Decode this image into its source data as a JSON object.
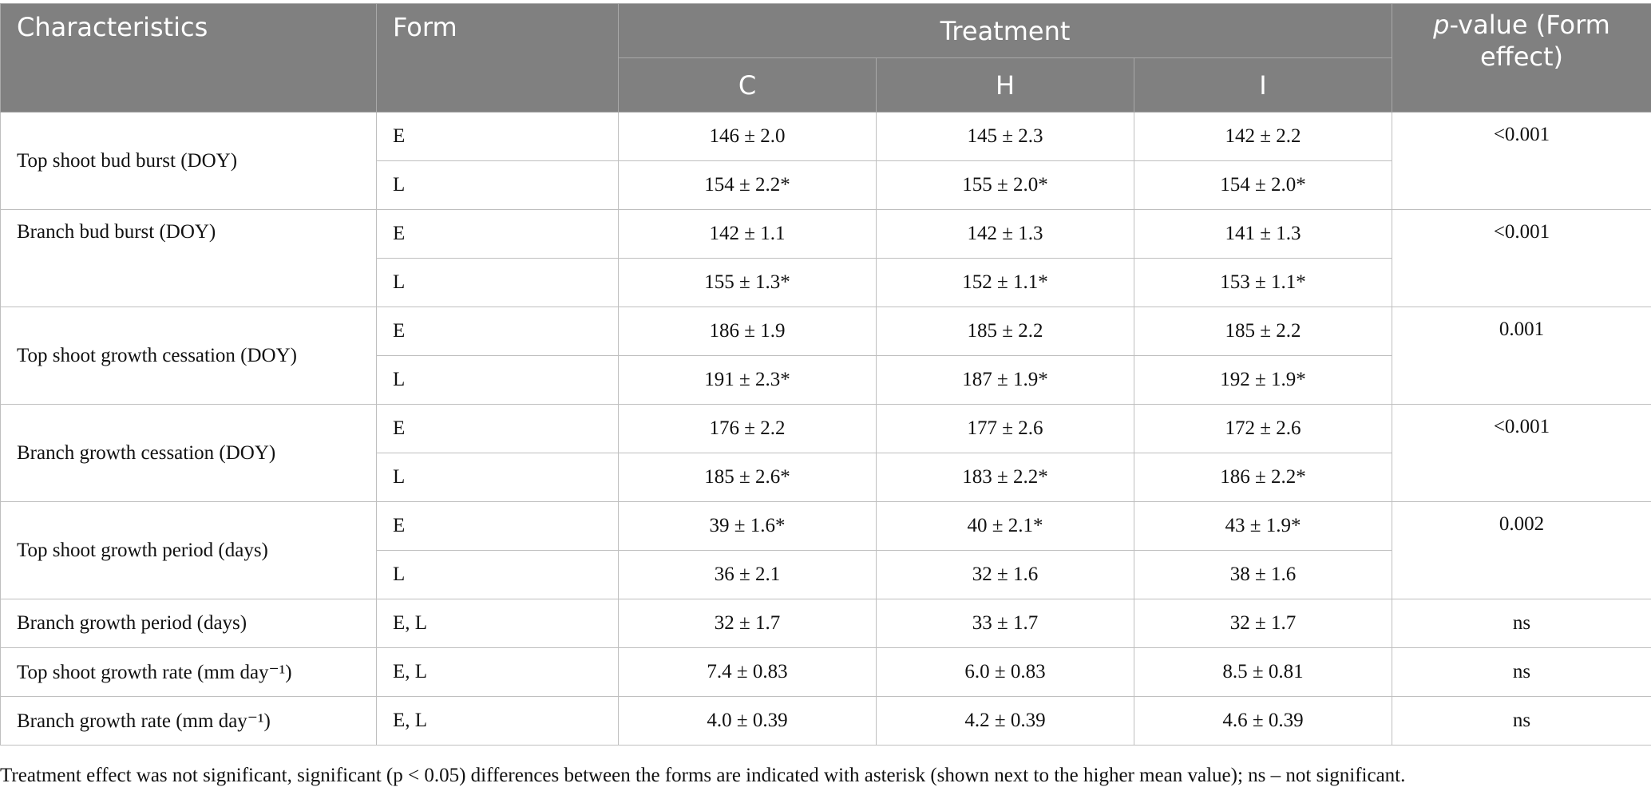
{
  "header": {
    "characteristics": "Characteristics",
    "form": "Form",
    "treatment": "Treatment",
    "pvalue_italic": "p",
    "pvalue_rest": "-value (Form effect)",
    "treatments": [
      "C",
      "H",
      "I"
    ]
  },
  "rows": [
    {
      "characteristic": "Top shoot bud burst (DOY)",
      "p": "<0.001",
      "E": [
        "146 ± 2.0",
        "145 ± 2.3",
        "142 ± 2.2"
      ],
      "L": [
        "154 ± 2.2*",
        "155 ± 2.0*",
        "154 ± 2.0*"
      ]
    },
    {
      "characteristic": "Branch bud burst (DOY)",
      "p": "<0.001",
      "E": [
        "142 ± 1.1",
        "142 ± 1.3",
        "141 ± 1.3"
      ],
      "L": [
        "155 ± 1.3*",
        "152 ± 1.1*",
        "153 ± 1.1*"
      ]
    },
    {
      "characteristic": "Top shoot growth cessation (DOY)",
      "p": "0.001",
      "E": [
        "186 ± 1.9",
        "185 ± 2.2",
        "185 ± 2.2"
      ],
      "L": [
        "191 ± 2.3*",
        "187 ± 1.9*",
        "192 ± 1.9*"
      ]
    },
    {
      "characteristic": "Branch growth cessation (DOY)",
      "p": "<0.001",
      "E": [
        "176 ± 2.2",
        "177 ± 2.6",
        "172 ± 2.6"
      ],
      "L": [
        "185 ± 2.6*",
        "183 ± 2.2*",
        "186 ± 2.2*"
      ]
    },
    {
      "characteristic": "Top shoot growth period (days)",
      "p": "0.002",
      "E": [
        "39 ± 1.6*",
        "40 ± 2.1*",
        "43 ± 1.9*"
      ],
      "L": [
        "36 ± 2.1",
        "32 ± 1.6",
        "38 ± 1.6"
      ]
    },
    {
      "characteristic": "Branch growth period (days)",
      "form": "E, L",
      "p": "ns",
      "values": [
        "32 ± 1.7",
        "33 ± 1.7",
        "32 ± 1.7"
      ]
    },
    {
      "characteristic": "Top shoot growth rate (mm day⁻¹)",
      "form": "E, L",
      "p": "ns",
      "values": [
        "7.4 ± 0.83",
        "6.0 ± 0.83",
        "8.5 ± 0.81"
      ]
    },
    {
      "characteristic": "Branch growth rate (mm day⁻¹)",
      "form": "E, L",
      "p": "ns",
      "values": [
        "4.0 ± 0.39",
        "4.2 ± 0.39",
        "4.6 ± 0.39"
      ]
    }
  ],
  "forms": {
    "early": "E",
    "late": "L"
  },
  "footnote": "Treatment effect was not significant, significant (p < 0.05) differences between the forms are indicated with asterisk (shown next to the higher mean value); ns – not significant."
}
